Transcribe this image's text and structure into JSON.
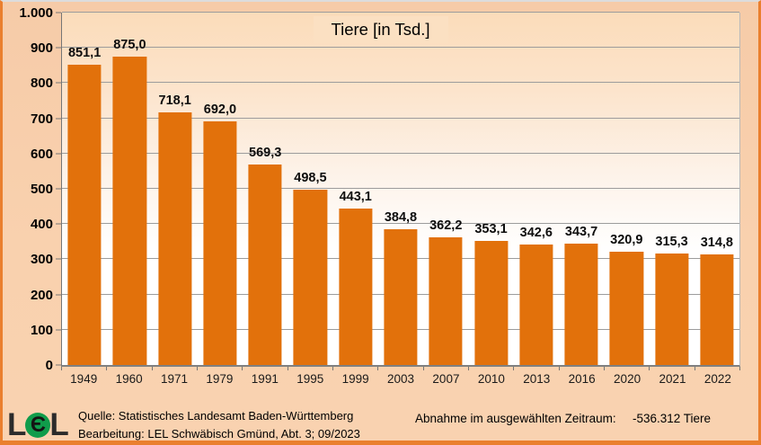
{
  "chart_data": {
    "type": "bar",
    "title": "Tiere [in Tsd.]",
    "xlabel": "",
    "ylabel": "",
    "categories": [
      "1949",
      "1960",
      "1971",
      "1979",
      "1991",
      "1995",
      "1999",
      "2003",
      "2007",
      "2010",
      "2013",
      "2016",
      "2020",
      "2021",
      "2022"
    ],
    "values": [
      851.1,
      875.0,
      718.1,
      692.0,
      569.3,
      498.5,
      443.1,
      384.8,
      362.2,
      353.1,
      342.6,
      343.7,
      320.9,
      315.3,
      314.8
    ],
    "value_labels": [
      "851,1",
      "875,0",
      "718,1",
      "692,0",
      "569,3",
      "498,5",
      "443,1",
      "384,8",
      "362,2",
      "353,1",
      "342,6",
      "343,7",
      "320,9",
      "315,3",
      "314,8"
    ],
    "ylim": [
      0,
      1000
    ],
    "ytick_step": 100,
    "ytick_labels": [
      "0",
      "100",
      "200",
      "300",
      "400",
      "500",
      "600",
      "700",
      "800",
      "900",
      "1.000"
    ],
    "grid": true,
    "legend": "none"
  },
  "colors": {
    "bar": "#e2710b",
    "background": "#f8d0ac",
    "plot_gradient_top": "#fbdcba",
    "gridline": "#9c9c9c",
    "window_border": "#ea7f2e",
    "logo_green": "#109c4b"
  },
  "footer": {
    "source_line1": "Quelle: Statistisches Landesamt Baden-Württemberg",
    "source_line2": "Bearbeitung: LEL Schwäbisch Gmünd, Abt. 3; 09/2023",
    "change_label": "Abnahme im ausgewählten Zeitraum:",
    "change_value": "-536.312 Tiere"
  },
  "logo": {
    "left_letter": "L",
    "circle_glyph": "Є",
    "right_letter": "L"
  }
}
